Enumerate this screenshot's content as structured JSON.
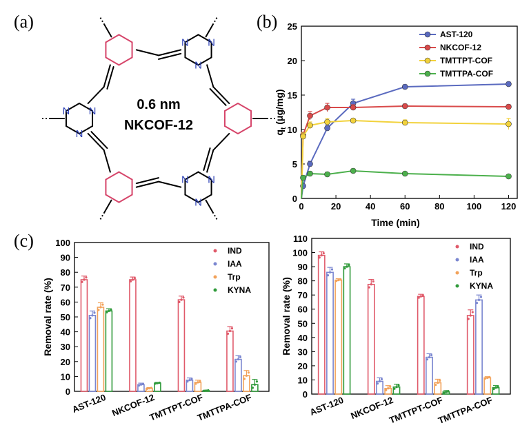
{
  "panels": {
    "a": "(a)",
    "b": "(b)",
    "c": "(c)"
  },
  "structure": {
    "pore_size": "0.6 nm",
    "name": "NKCOF-12",
    "atom_label": "N",
    "colors": {
      "benzene": "#d6456a",
      "triazine_n": "#2a3fb5",
      "bond": "#000000"
    }
  },
  "chart_data": [
    {
      "type": "line",
      "panel": "b",
      "title": "",
      "xlabel": "Time (min)",
      "ylabel_main": "q",
      "ylabel_sub": "t",
      "ylabel_unit": " (μg/mg)",
      "xlim": [
        0,
        125
      ],
      "ylim": [
        0,
        25
      ],
      "xticks": [
        0,
        20,
        40,
        60,
        80,
        100,
        120
      ],
      "yticks": [
        0,
        5,
        10,
        15,
        20,
        25
      ],
      "legend_position": "top-right",
      "series": [
        {
          "name": "AST-120",
          "color": "#5a6abf",
          "x": [
            0,
            1,
            5,
            15,
            30,
            60,
            120
          ],
          "y": [
            0,
            1.8,
            5.0,
            10.2,
            13.8,
            16.2,
            16.6
          ],
          "err": [
            0,
            0.3,
            0.4,
            0.4,
            0.6,
            0.3,
            0.3
          ]
        },
        {
          "name": "NKCOF-12",
          "color": "#d94a4a",
          "x": [
            0,
            1,
            5,
            15,
            30,
            60,
            120
          ],
          "y": [
            0,
            9.2,
            12.0,
            13.2,
            13.2,
            13.4,
            13.3
          ],
          "err": [
            0,
            0.4,
            0.6,
            0.6,
            0.4,
            0.3,
            0.3
          ]
        },
        {
          "name": "TMTTPT-COF",
          "color": "#f2d23c",
          "x": [
            0,
            1,
            5,
            15,
            30,
            60,
            120
          ],
          "y": [
            0,
            9.0,
            10.6,
            11.1,
            11.3,
            11.0,
            10.8
          ],
          "err": [
            0,
            0.5,
            0.5,
            0.5,
            0.3,
            0.4,
            0.8
          ]
        },
        {
          "name": "TMTTPA-COF",
          "color": "#4cb04c",
          "x": [
            0,
            1,
            5,
            15,
            30,
            60,
            120
          ],
          "y": [
            0,
            3.0,
            3.6,
            3.5,
            4.0,
            3.6,
            3.2
          ],
          "err": [
            0,
            0.3,
            0.3,
            0.3,
            0.3,
            0.2,
            0.2
          ]
        }
      ]
    },
    {
      "type": "bar",
      "panel": "c-left",
      "title": "",
      "ylabel": "Removal rate (%)",
      "ylim": [
        0,
        100
      ],
      "yticks": [
        0,
        10,
        20,
        30,
        40,
        50,
        60,
        70,
        80,
        90,
        100
      ],
      "categories": [
        "AST-120",
        "NKCOF-12",
        "TMTTPT-COF",
        "TMTTPA-COF"
      ],
      "legend_position": "top-right",
      "series": [
        {
          "name": "IND",
          "color": "#e05a6a",
          "values": [
            75.0,
            75.0,
            61.5,
            40.5
          ],
          "err": [
            2.5,
            1.8,
            2.5,
            3.0
          ]
        },
        {
          "name": "IAA",
          "color": "#7a86d0",
          "values": [
            51.0,
            4.5,
            7.5,
            21.5
          ],
          "err": [
            3.0,
            1.0,
            1.5,
            2.5
          ]
        },
        {
          "name": "Trp",
          "color": "#f2a25a",
          "values": [
            56.5,
            2.0,
            6.0,
            10.5
          ],
          "err": [
            3.0,
            0.5,
            1.5,
            3.5
          ]
        },
        {
          "name": "KYNA",
          "color": "#2f9a3a",
          "values": [
            54.0,
            5.5,
            0.5,
            4.5
          ],
          "err": [
            1.5,
            0.5,
            0.3,
            3.5
          ]
        }
      ]
    },
    {
      "type": "bar",
      "panel": "c-right",
      "title": "",
      "ylabel": "Removal rate (%)",
      "ylim": [
        0,
        110
      ],
      "yticks": [
        0,
        10,
        20,
        30,
        40,
        50,
        60,
        70,
        80,
        90,
        100,
        110
      ],
      "categories": [
        "AST-120",
        "NKCOF-12",
        "TMTTPT-COF",
        "TMTTPA-COF"
      ],
      "legend_position": "top-right",
      "series": [
        {
          "name": "IND",
          "color": "#e05a6a",
          "values": [
            98.0,
            77.5,
            69.0,
            55.5
          ],
          "err": [
            2.5,
            3.5,
            1.5,
            4.0
          ]
        },
        {
          "name": "IAA",
          "color": "#7a86d0",
          "values": [
            86.0,
            9.0,
            26.0,
            66.5
          ],
          "err": [
            3.5,
            2.5,
            2.5,
            3.5
          ]
        },
        {
          "name": "Trp",
          "color": "#f2a25a",
          "values": [
            80.5,
            4.0,
            8.0,
            11.5
          ],
          "err": [
            1.0,
            2.0,
            2.5,
            0.8
          ]
        },
        {
          "name": "KYNA",
          "color": "#2f9a3a",
          "values": [
            90.0,
            5.0,
            1.5,
            4.5
          ],
          "err": [
            2.0,
            2.0,
            1.0,
            1.5
          ]
        }
      ]
    }
  ]
}
